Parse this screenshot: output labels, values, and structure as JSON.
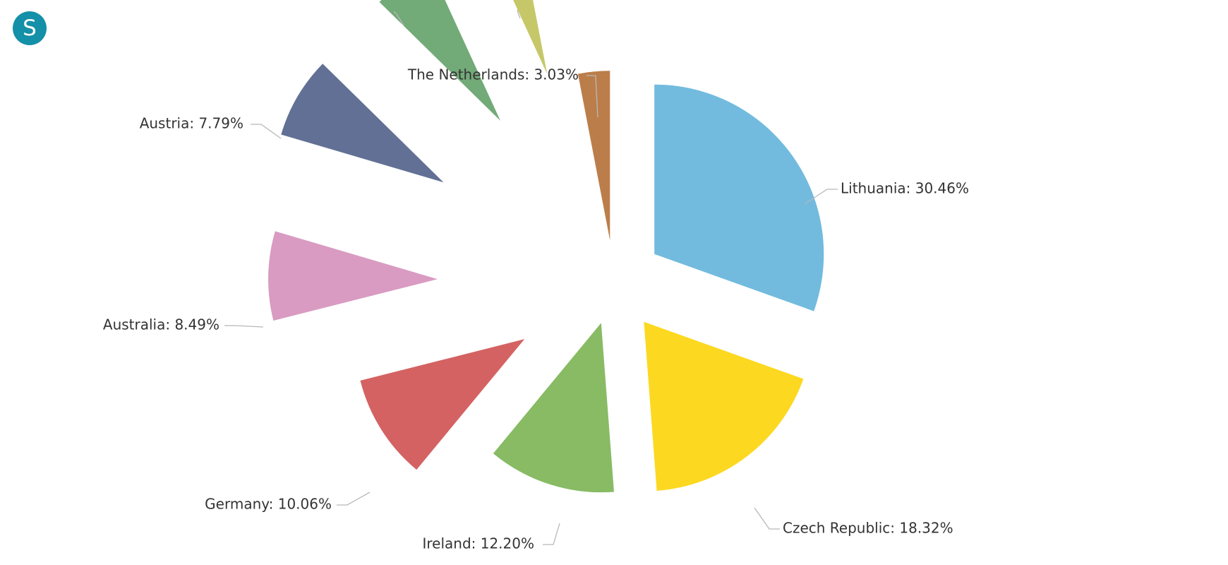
{
  "logo": {
    "letter": "S",
    "color": "#1490a8"
  },
  "chart_data": {
    "type": "pie",
    "title": "",
    "slices": [
      {
        "label": "Lithuania: 30.46%",
        "value": 30.46,
        "color": "#72bbde"
      },
      {
        "label": "Czech Republic: 18.32%",
        "value": 18.32,
        "color": "#fcd820"
      },
      {
        "label": "Ireland: 12.20%",
        "value": 12.2,
        "color": "#88bb64"
      },
      {
        "label": "Germany: 10.06%",
        "value": 10.06,
        "color": "#d46262"
      },
      {
        "label": "Australia: 8.49%",
        "value": 8.49,
        "color": "#d99bc1"
      },
      {
        "label": "Austria: 7.79%",
        "value": 7.79,
        "color": "#627095"
      },
      {
        "label": "",
        "value": 5.8,
        "color": "#72aa78"
      },
      {
        "label": "",
        "value": 3.82,
        "color": "#c6c769"
      },
      {
        "label": "The Netherlands: 3.03%",
        "value": 3.03,
        "color": "#bb7e4a"
      }
    ]
  }
}
